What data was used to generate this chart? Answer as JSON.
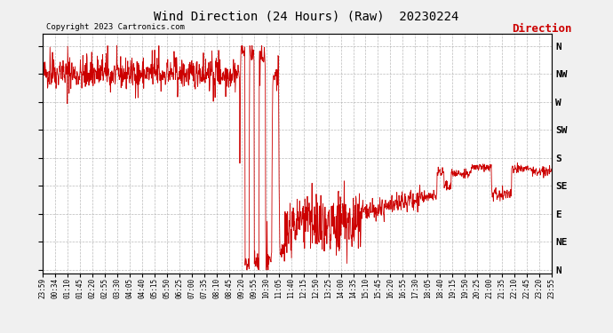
{
  "title": "Wind Direction (24 Hours) (Raw)  20230224",
  "copyright": "Copyright 2023 Cartronics.com",
  "legend_label": "Direction",
  "legend_color": "#cc0000",
  "line_color": "#cc0000",
  "bg_color": "#f0f0f0",
  "plot_bg_color": "#ffffff",
  "grid_color": "#aaaaaa",
  "y_labels": [
    "N",
    "NW",
    "W",
    "SW",
    "S",
    "SE",
    "E",
    "NE",
    "N"
  ],
  "y_values": [
    360,
    315,
    270,
    225,
    180,
    135,
    90,
    45,
    0
  ],
  "ylim": [
    -5,
    380
  ],
  "x_ticks_labels": [
    "23:59",
    "00:34",
    "01:10",
    "01:45",
    "02:20",
    "02:55",
    "03:30",
    "04:05",
    "04:40",
    "05:15",
    "05:50",
    "06:25",
    "07:00",
    "07:35",
    "08:10",
    "08:45",
    "09:20",
    "09:55",
    "10:30",
    "11:05",
    "11:40",
    "12:15",
    "12:50",
    "13:25",
    "14:00",
    "14:35",
    "15:10",
    "15:45",
    "16:20",
    "16:55",
    "17:30",
    "18:05",
    "18:40",
    "19:15",
    "19:50",
    "20:25",
    "21:00",
    "21:35",
    "22:10",
    "22:45",
    "23:20",
    "23:55"
  ],
  "n_points": 1440,
  "seed": 42
}
